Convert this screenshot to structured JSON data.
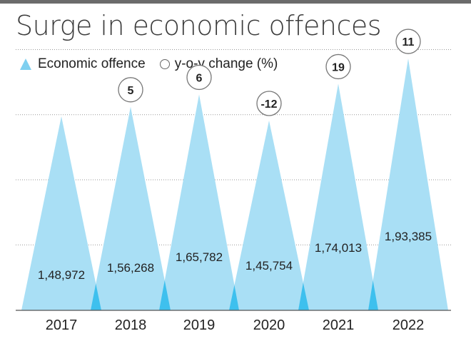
{
  "chart_data": {
    "type": "area",
    "title": "Surge in economic offences",
    "legend": {
      "series_label": "Economic offence",
      "change_label": "y-o-y change (%)",
      "placement": "top-left"
    },
    "categories": [
      "2017",
      "2018",
      "2019",
      "2020",
      "2021",
      "2022"
    ],
    "values": [
      148972,
      156268,
      165782,
      145754,
      174013,
      193385
    ],
    "value_labels": [
      "1,48,972",
      "1,56,268",
      "1,65,782",
      "1,45,754",
      "1,74,013",
      "1,93,385"
    ],
    "yoy_change": [
      null,
      5,
      6,
      -12,
      19,
      11
    ],
    "yoy_labels": [
      "",
      "5",
      "6",
      "-12",
      "19",
      "11"
    ],
    "ylim": [
      0,
      200000
    ],
    "grid": true,
    "colors": {
      "fill": "#a9dff5",
      "overlap": "#3ec0ee",
      "text": "#222222",
      "grid": "#999999",
      "title": "#3c3c3c"
    }
  }
}
